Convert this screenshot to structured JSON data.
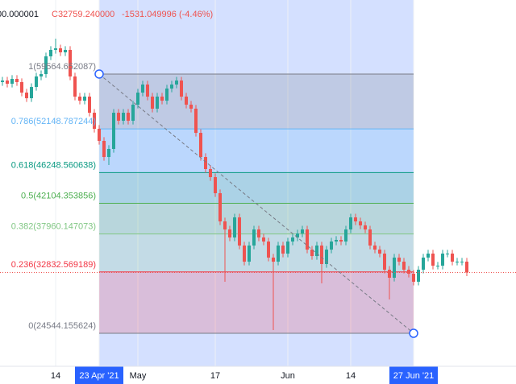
{
  "chart_data": {
    "type": "candlestick",
    "header": [
      "00.000001",
      "C32759.240000",
      "-1531.049996 (-4.46%)"
    ],
    "categories": [
      null,
      null,
      null,
      null,
      null,
      null,
      null,
      null,
      null,
      null,
      null,
      "14",
      null,
      null,
      null,
      null,
      null,
      null,
      null,
      null,
      "23 Apr '21",
      null,
      null,
      null,
      null,
      null,
      null,
      null,
      "May",
      null,
      null,
      null,
      null,
      null,
      null,
      null,
      null,
      null,
      null,
      null,
      null,
      null,
      null,
      null,
      "17",
      null,
      null,
      null,
      null,
      null,
      null,
      null,
      null,
      null,
      null,
      null,
      null,
      null,
      null,
      "Jun",
      null,
      null,
      null,
      null,
      null,
      null,
      null,
      null,
      null,
      null,
      null,
      null,
      "14",
      null,
      null,
      null,
      null,
      null,
      null,
      null,
      null,
      null,
      null,
      null,
      null,
      "27 Jun '21",
      null,
      null,
      null,
      null,
      null,
      null,
      null,
      null,
      null,
      null,
      null
    ],
    "open": [
      58480,
      58690,
      58260,
      58910,
      58480,
      57060,
      56300,
      57820,
      59240,
      59560,
      61960,
      62830,
      63040,
      62500,
      62830,
      59240,
      56520,
      55970,
      56520,
      54340,
      52170,
      50540,
      48360,
      49450,
      54340,
      53260,
      54340,
      53260,
      55430,
      57060,
      58150,
      56520,
      54890,
      56520,
      55970,
      57610,
      58150,
      58690,
      56520,
      55430,
      54890,
      51620,
      48360,
      46730,
      45640,
      43470,
      39660,
      38570,
      37490,
      40200,
      36400,
      34220,
      36400,
      38570,
      37490,
      36940,
      34770,
      34220,
      36400,
      35310,
      36940,
      37490,
      38030,
      38570,
      35850,
      34980,
      36400,
      33900,
      35850,
      36940,
      37160,
      36940,
      38570,
      40200,
      39660,
      39120,
      38570,
      36400,
      35850,
      35310,
      33130,
      32050,
      34770,
      34220,
      33130,
      32590,
      31510,
      33130,
      34770,
      35310,
      33680,
      33680,
      35310,
      35310,
      34220,
      34220,
      34220
    ],
    "high": [
      59190,
      59190,
      59410,
      59410,
      58980,
      57560,
      58320,
      59740,
      60060,
      62460,
      63330,
      64350,
      63540,
      63330,
      63330,
      59740,
      57020,
      57020,
      57020,
      54840,
      52670,
      51040,
      49950,
      54840,
      54840,
      54840,
      54840,
      55930,
      57560,
      58650,
      58650,
      57020,
      57020,
      57020,
      58110,
      58650,
      59190,
      59190,
      57020,
      55930,
      55390,
      52120,
      48860,
      47230,
      46140,
      43970,
      40160,
      39070,
      40700,
      40700,
      36900,
      36900,
      39070,
      39070,
      37990,
      37440,
      35270,
      36900,
      36900,
      37440,
      37990,
      38530,
      39070,
      39070,
      36350,
      36900,
      36900,
      36350,
      37440,
      37660,
      37660,
      39070,
      40700,
      40700,
      40160,
      39620,
      39070,
      36900,
      36350,
      35810,
      33630,
      35270,
      35270,
      34720,
      33630,
      33090,
      33630,
      35270,
      35810,
      35810,
      34180,
      35810,
      35810,
      35810,
      34720,
      34720,
      34720
    ],
    "low": [
      57980,
      57760,
      57760,
      57980,
      56560,
      55800,
      55800,
      57320,
      58740,
      59060,
      61460,
      62330,
      62000,
      62000,
      58740,
      56020,
      55470,
      55470,
      53840,
      51670,
      50040,
      47860,
      47270,
      48950,
      52760,
      52760,
      52760,
      52760,
      54930,
      56560,
      56020,
      54390,
      54390,
      55470,
      55470,
      57110,
      57650,
      56020,
      54930,
      54390,
      51120,
      47860,
      46230,
      45140,
      42970,
      39160,
      31510,
      36990,
      36990,
      35900,
      33720,
      33720,
      35900,
      36990,
      36440,
      34270,
      24980,
      33720,
      34810,
      34810,
      36440,
      36990,
      37530,
      35350,
      34480,
      34480,
      31290,
      33400,
      35350,
      36440,
      36440,
      36440,
      38070,
      39160,
      38620,
      38070,
      35900,
      35350,
      34810,
      32630,
      29110,
      31550,
      33720,
      32630,
      32090,
      31010,
      31010,
      32630,
      34270,
      33180,
      33180,
      33180,
      34810,
      33720,
      33720,
      33720,
      32260
    ],
    "close": [
      58690,
      58260,
      58910,
      58480,
      57060,
      56300,
      57820,
      59240,
      59560,
      61960,
      62830,
      63040,
      62500,
      62830,
      59240,
      56520,
      55970,
      56520,
      54340,
      52170,
      50540,
      48360,
      49450,
      54340,
      53260,
      54340,
      53260,
      55430,
      57060,
      58150,
      56520,
      54890,
      56520,
      55970,
      57610,
      58150,
      58690,
      56520,
      55430,
      54890,
      51620,
      48360,
      46730,
      45640,
      43470,
      39660,
      38570,
      37490,
      40200,
      36400,
      34220,
      36400,
      38570,
      37490,
      36940,
      34770,
      34220,
      36400,
      35310,
      36940,
      37490,
      38030,
      38570,
      35850,
      34980,
      36400,
      33900,
      35850,
      36940,
      37160,
      36940,
      38570,
      40200,
      39660,
      39120,
      38570,
      36400,
      35850,
      35310,
      33130,
      32050,
      34770,
      34220,
      33130,
      32590,
      31510,
      33130,
      34770,
      35310,
      33680,
      33680,
      35310,
      35310,
      34220,
      34220,
      34220,
      32759.24
    ],
    "up_color": "#26a69a",
    "down_color": "#ef5350",
    "ylim": [
      20085,
      69570
    ],
    "highlight": [
      20,
      85
    ],
    "fib_levels": [
      {
        "label": "1(59564.652087)",
        "price": 59564.652087,
        "color": "#787b86",
        "fill": "rgba(120,123,134,0.22)"
      },
      {
        "label": "0.786(52148.787244)",
        "price": 52148.787244,
        "color": "#64b5f6",
        "fill": "rgba(100,181,246,0.22)"
      },
      {
        "label": "0.618(46248.560638)",
        "price": 46248.560638,
        "color": "#089981",
        "fill": "rgba(8,153,129,0.2)"
      },
      {
        "label": "0.5(42104.353856)",
        "price": 42104.353856,
        "color": "#4caf50",
        "fill": "rgba(76,175,80,0.2)"
      },
      {
        "label": "0.382(37960.147073)",
        "price": 37960.147073,
        "color": "#81c784",
        "fill": "rgba(129,199,132,0.2)"
      },
      {
        "label": "0.236(32832.569189)",
        "price": 32832.569189,
        "color": "#f23645",
        "fill": "rgba(242,54,69,0.2)"
      },
      {
        "label": "0(24544.155624)",
        "price": 24544.155624,
        "color": "#787b86",
        "fill": null
      }
    ]
  }
}
